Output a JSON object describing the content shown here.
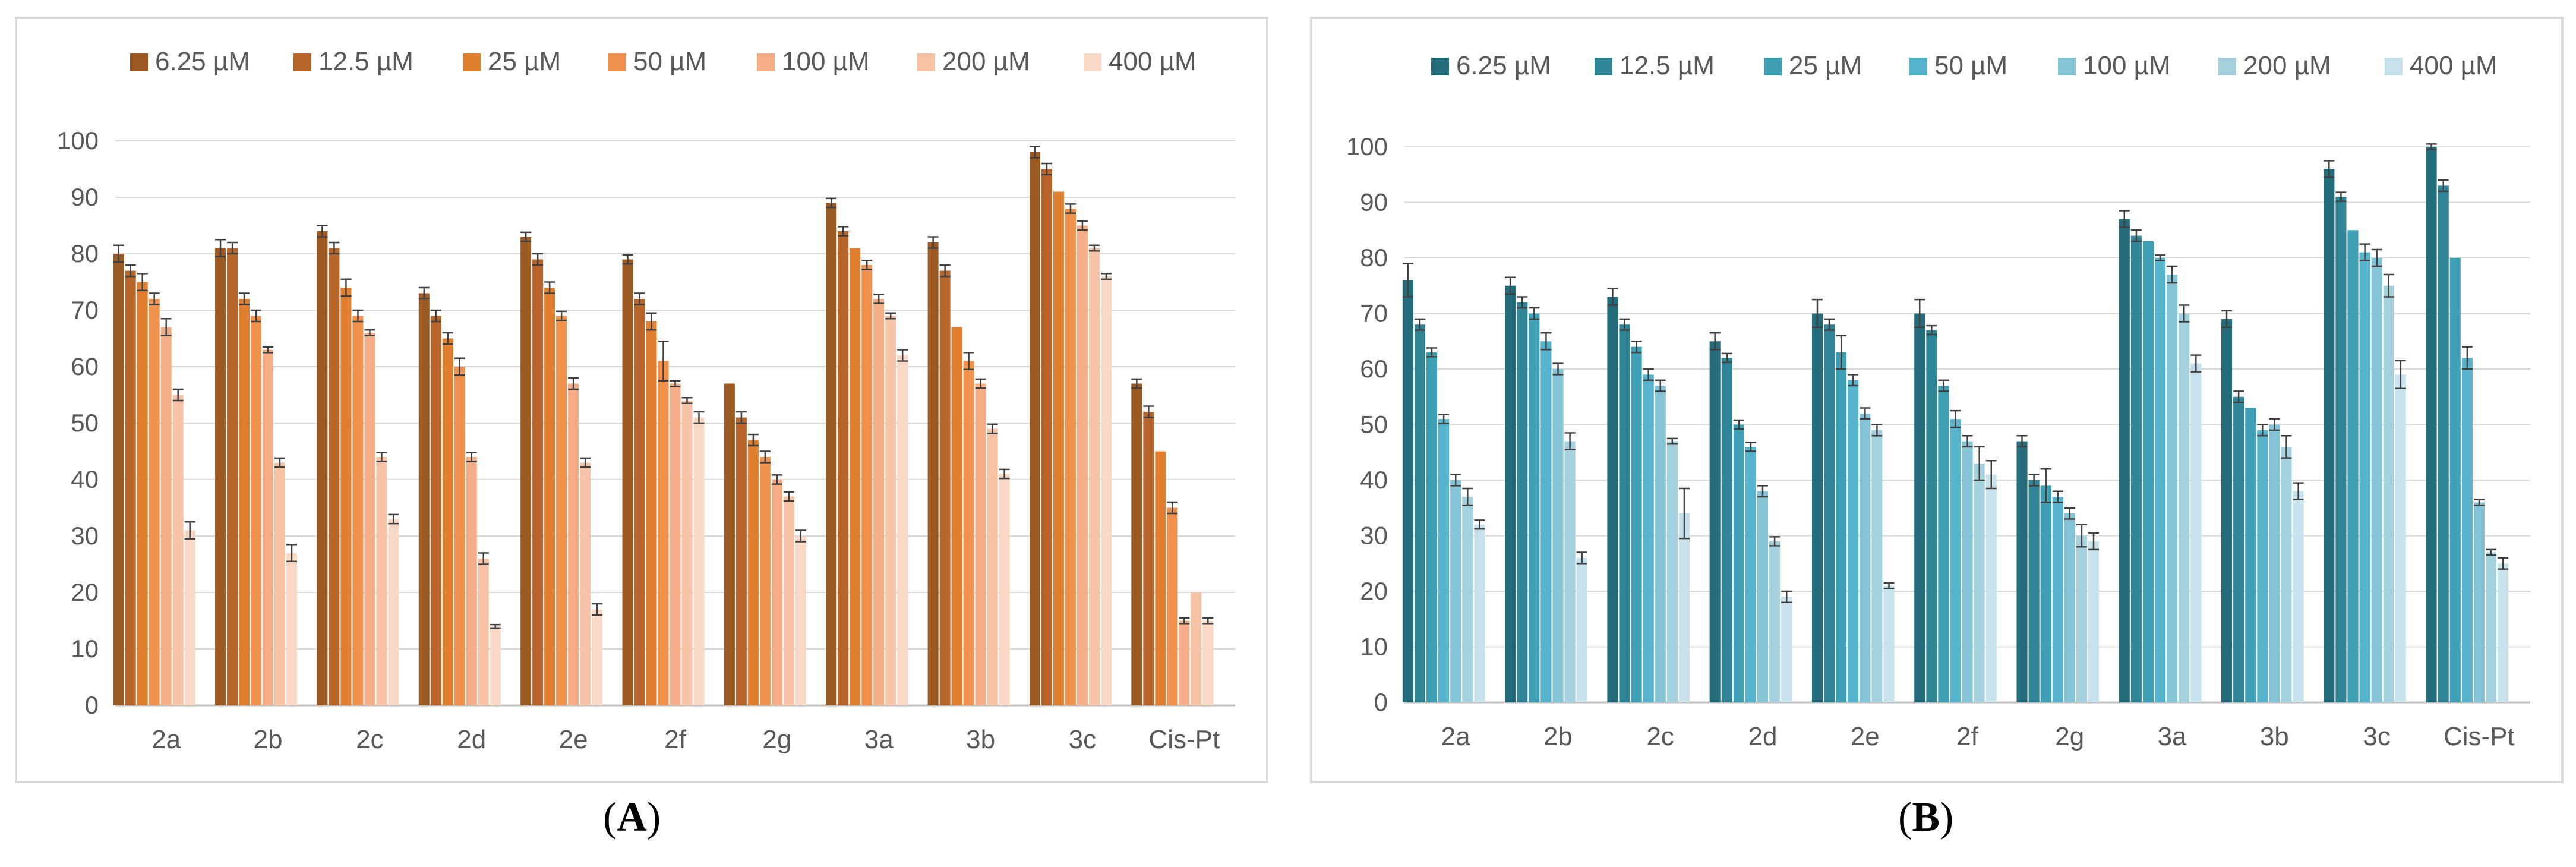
{
  "chart_data": [
    {
      "type": "bar",
      "panel_label": "A",
      "title": "",
      "xlabel": "",
      "ylabel": "",
      "ylim": [
        0,
        100
      ],
      "yticks": [
        0,
        10,
        20,
        30,
        40,
        50,
        60,
        70,
        80,
        90,
        100
      ],
      "grid": true,
      "legend_position": "top",
      "categories": [
        "2a",
        "2b",
        "2c",
        "2d",
        "2e",
        "2f",
        "2g",
        "3a",
        "3b",
        "3c",
        "Cis-Pt"
      ],
      "colors": [
        "#9c5a23",
        "#b8652b",
        "#e07f30",
        "#f0924e",
        "#f4ad86",
        "#f6c3a6",
        "#f9d8c6"
      ],
      "series": [
        {
          "name": "6.25 µM",
          "values": [
            80,
            81,
            84,
            73,
            83,
            79,
            57,
            89,
            82,
            98,
            57
          ],
          "errors": [
            1.5,
            1.5,
            1,
            1,
            0.8,
            0.8,
            0,
            0.8,
            1,
            1,
            0.8
          ]
        },
        {
          "name": "12.5 µM",
          "values": [
            77,
            81,
            81,
            69,
            79,
            72,
            51,
            84,
            77,
            95,
            52
          ],
          "errors": [
            1,
            1,
            1,
            1,
            1,
            1,
            1,
            0.8,
            1,
            1,
            1
          ]
        },
        {
          "name": "25 µM",
          "values": [
            75,
            72,
            74,
            65,
            74,
            68,
            47,
            81,
            67,
            91,
            45
          ],
          "errors": [
            1.5,
            1,
            1.5,
            1,
            1,
            1.5,
            1,
            0,
            0,
            0,
            0
          ]
        },
        {
          "name": "50 µM",
          "values": [
            72,
            69,
            69,
            60,
            69,
            61,
            44,
            78,
            61,
            88,
            35
          ],
          "errors": [
            1,
            1,
            1,
            1.5,
            0.8,
            3.5,
            1,
            0.8,
            1.5,
            0.8,
            1
          ]
        },
        {
          "name": "100 µM",
          "values": [
            67,
            63,
            66,
            44,
            57,
            57,
            40,
            72,
            57,
            85,
            15
          ],
          "errors": [
            1.5,
            0.5,
            0.5,
            0.8,
            1,
            0.5,
            0.8,
            0.8,
            0.8,
            0.8,
            0.5
          ]
        },
        {
          "name": "200 µM",
          "values": [
            55,
            43,
            44,
            26,
            43,
            54,
            37,
            69,
            49,
            81,
            20
          ],
          "errors": [
            1,
            0.8,
            0.8,
            1,
            0.8,
            0.5,
            0.8,
            0.5,
            0.8,
            0.5,
            0
          ]
        },
        {
          "name": "400 µM",
          "values": [
            31,
            27,
            33,
            14,
            17,
            51,
            30,
            62,
            41,
            76,
            15
          ],
          "errors": [
            1.5,
            1.5,
            0.8,
            0.3,
            1,
            1,
            1,
            1,
            0.8,
            0.5,
            0.5
          ]
        }
      ]
    },
    {
      "type": "bar",
      "panel_label": "B",
      "title": "",
      "xlabel": "",
      "ylabel": "",
      "ylim": [
        0,
        100
      ],
      "yticks": [
        0,
        10,
        20,
        30,
        40,
        50,
        60,
        70,
        80,
        90,
        100
      ],
      "grid": true,
      "legend_position": "top",
      "categories": [
        "2a",
        "2b",
        "2c",
        "2d",
        "2e",
        "2f",
        "2g",
        "3a",
        "3b",
        "3c",
        "Cis-Pt"
      ],
      "colors": [
        "#246c7c",
        "#2f8496",
        "#3fa0b5",
        "#56b4cc",
        "#85c3d6",
        "#a5d1df",
        "#c7e2ec"
      ],
      "series": [
        {
          "name": "6.25 µM",
          "values": [
            76,
            75,
            73,
            65,
            70,
            70,
            47,
            87,
            69,
            96,
            100
          ],
          "errors": [
            3,
            1.5,
            1.5,
            1.5,
            2.5,
            2.5,
            1,
            1.5,
            1.5,
            1.5,
            0.5
          ]
        },
        {
          "name": "12.5 µM",
          "values": [
            68,
            72,
            68,
            62,
            68,
            67,
            40,
            84,
            55,
            91,
            93
          ],
          "errors": [
            1,
            1,
            1,
            0.8,
            1,
            0.8,
            1,
            1,
            1,
            0.8,
            1
          ]
        },
        {
          "name": "25 µM",
          "values": [
            63,
            70,
            64,
            50,
            63,
            57,
            39,
            83,
            53,
            85,
            80
          ],
          "errors": [
            0.8,
            1,
            1,
            0.8,
            3,
            1,
            3,
            0,
            0,
            0,
            0
          ]
        },
        {
          "name": "50 µM",
          "values": [
            51,
            65,
            59,
            46,
            58,
            51,
            37,
            80,
            49,
            81,
            62
          ],
          "errors": [
            0.8,
            1.5,
            1,
            0.8,
            1,
            1.5,
            1,
            0.5,
            1,
            1.5,
            2
          ]
        },
        {
          "name": "100 µM",
          "values": [
            40,
            60,
            57,
            38,
            52,
            47,
            34,
            77,
            50,
            80,
            36
          ],
          "errors": [
            1,
            1,
            1,
            1,
            1,
            1,
            1,
            1.5,
            1,
            1.5,
            0.5
          ]
        },
        {
          "name": "200 µM",
          "values": [
            37,
            47,
            47,
            29,
            49,
            43,
            30,
            70,
            46,
            75,
            27
          ],
          "errors": [
            1.5,
            1.5,
            0.5,
            0.8,
            1,
            3,
            2,
            1.5,
            2,
            2,
            0.5
          ]
        },
        {
          "name": "400 µM",
          "values": [
            32,
            26,
            34,
            19,
            21,
            41,
            29,
            61,
            38,
            59,
            25
          ],
          "errors": [
            0.8,
            1,
            4.5,
            1,
            0.5,
            2.5,
            1.5,
            1.5,
            1.5,
            2.5,
            1
          ]
        }
      ]
    }
  ],
  "figure_labels": {
    "a": "A",
    "b": "B"
  }
}
